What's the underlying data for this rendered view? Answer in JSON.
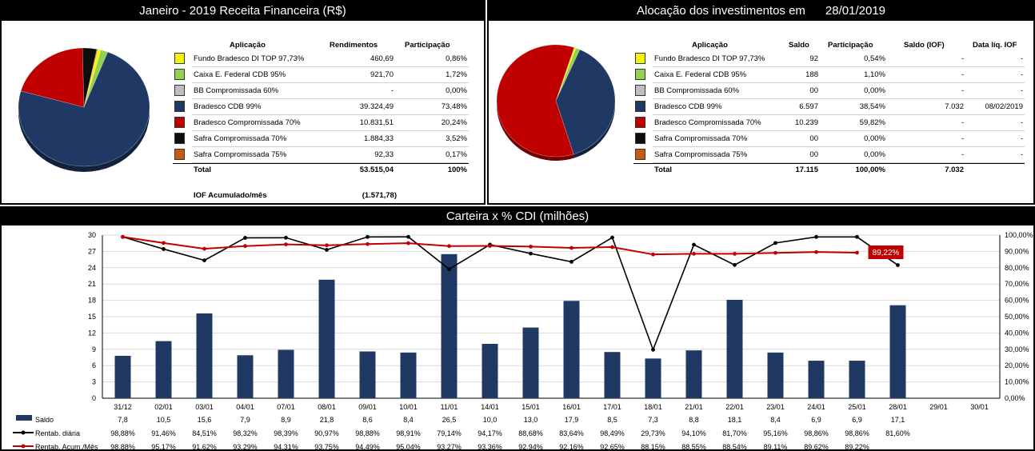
{
  "panel1": {
    "title": "Janeiro - 2019 Receita Financeira (R$)",
    "headers": {
      "app": "Aplicação",
      "rend": "Rendimentos",
      "part": "Participação"
    },
    "rows": [
      {
        "name": "Fundo Bradesco DI TOP 97,73%",
        "color": "#f5f500",
        "rend": "460,69",
        "part": "0,86%"
      },
      {
        "name": "Caixa E. Federal CDB 95%",
        "color": "#92d050",
        "rend": "921,70",
        "part": "1,72%"
      },
      {
        "name": "BB Compromissada 60%",
        "color": "#bfbfbf",
        "rend": "-",
        "part": "0,00%"
      },
      {
        "name": "Bradesco CDB 99%",
        "color": "#1f3864",
        "rend": "39.324,49",
        "part": "73,48%"
      },
      {
        "name": "Bradesco Compromissada 70%",
        "color": "#c00000",
        "rend": "10.831,51",
        "part": "20,24%"
      },
      {
        "name": "Safra Compromissada 70%",
        "color": "#0d0d0d",
        "rend": "1.884,33",
        "part": "3,52%"
      },
      {
        "name": "Safra Compromissada 75%",
        "color": "#c55a11",
        "rend": "92,33",
        "part": "0,17%"
      }
    ],
    "total": {
      "label": "Total",
      "rend": "53.515,04",
      "part": "100%"
    },
    "iof": {
      "label": "IOF Acumulado/mês",
      "value": "(1.571,78)"
    },
    "pie": [
      0.86,
      1.72,
      0.0,
      73.48,
      20.24,
      3.52,
      0.17
    ]
  },
  "panel2": {
    "title": "Alocação dos investimentos em      28/01/2019",
    "headers": {
      "app": "Aplicação",
      "saldo": "Saldo",
      "part": "Participação",
      "iof": "Saldo (IOF)",
      "data": "Data líq. IOF"
    },
    "rows": [
      {
        "name": "Fundo Bradesco DI TOP 97,73%",
        "color": "#f5f500",
        "saldo": "92",
        "part": "0,54%",
        "iof": "-",
        "data": "-"
      },
      {
        "name": "Caixa E. Federal CDB 95%",
        "color": "#92d050",
        "saldo": "188",
        "part": "1,10%",
        "iof": "-",
        "data": "-"
      },
      {
        "name": "BB Compromissada 60%",
        "color": "#bfbfbf",
        "saldo": "00",
        "part": "0,00%",
        "iof": "-",
        "data": "-"
      },
      {
        "name": "Bradesco CDB 99%",
        "color": "#1f3864",
        "saldo": "6.597",
        "part": "38,54%",
        "iof": "7.032",
        "data": "08/02/2019"
      },
      {
        "name": "Bradesco Compromissada 70%",
        "color": "#c00000",
        "saldo": "10.239",
        "part": "59,82%",
        "iof": "-",
        "data": "-"
      },
      {
        "name": "Safra Compromissada 70%",
        "color": "#0d0d0d",
        "saldo": "00",
        "part": "0,00%",
        "iof": "-",
        "data": "-"
      },
      {
        "name": "Safra Compromissada 75%",
        "color": "#c55a11",
        "saldo": "00",
        "part": "0,00%",
        "iof": "-",
        "data": "-"
      }
    ],
    "total": {
      "label": "Total",
      "saldo": "17.115",
      "part": "100,00%",
      "iof": "7.032"
    },
    "pie": [
      0.54,
      1.1,
      0.0,
      38.54,
      59.82,
      0.0,
      0.0
    ]
  },
  "panel3": {
    "title": "Carteira x % CDI (milhões)",
    "legend": {
      "saldo": "Saldo",
      "diaria": "Rentab. diária",
      "acum": "Rentab. Acum./Mês"
    }
  },
  "chart_data": {
    "type": "bar",
    "categories": [
      "31/12",
      "02/01",
      "03/01",
      "04/01",
      "07/01",
      "08/01",
      "09/01",
      "10/01",
      "11/01",
      "14/01",
      "15/01",
      "16/01",
      "17/01",
      "18/01",
      "21/01",
      "22/01",
      "23/01",
      "24/01",
      "25/01",
      "28/01",
      "29/01",
      "30/01"
    ],
    "series": [
      {
        "name": "Saldo",
        "type": "bar",
        "axis": "left",
        "color": "#1f3864",
        "values": [
          7.8,
          10.5,
          15.6,
          7.9,
          8.9,
          21.8,
          8.6,
          8.4,
          26.5,
          10.0,
          13.0,
          17.9,
          8.5,
          7.3,
          8.8,
          18.1,
          8.4,
          6.9,
          6.9,
          17.1,
          null,
          null
        ],
        "labels": [
          "7,8",
          "10,5",
          "15,6",
          "7,9",
          "8,9",
          "21,8",
          "8,6",
          "8,4",
          "26,5",
          "10,0",
          "13,0",
          "17,9",
          "8,5",
          "7,3",
          "8,8",
          "18,1",
          "8,4",
          "6,9",
          "6,9",
          "17,1",
          "",
          ""
        ]
      },
      {
        "name": "Rentab. diária",
        "type": "line",
        "axis": "right",
        "color": "#000000",
        "values": [
          98.88,
          91.46,
          84.51,
          98.32,
          98.39,
          90.97,
          98.88,
          98.91,
          79.14,
          94.17,
          88.68,
          83.64,
          98.49,
          29.73,
          94.1,
          81.7,
          95.16,
          98.86,
          98.86,
          81.6,
          null,
          null
        ],
        "labels": [
          "98,88%",
          "91,46%",
          "84,51%",
          "98,32%",
          "98,39%",
          "90,97%",
          "98,88%",
          "98,91%",
          "79,14%",
          "94,17%",
          "88,68%",
          "83,64%",
          "98,49%",
          "29,73%",
          "94,10%",
          "81,70%",
          "95,16%",
          "98,86%",
          "98,86%",
          "81,60%",
          "",
          ""
        ]
      },
      {
        "name": "Rentab. Acum./Mês",
        "type": "line",
        "axis": "right",
        "color": "#c00000",
        "values": [
          98.88,
          95.17,
          91.62,
          93.29,
          94.31,
          93.75,
          94.49,
          95.04,
          93.27,
          93.36,
          92.94,
          92.16,
          92.65,
          88.15,
          88.55,
          88.54,
          89.11,
          89.62,
          89.22,
          null,
          null,
          null
        ],
        "labels": [
          "98,88%",
          "95,17%",
          "91,62%",
          "93,29%",
          "94,31%",
          "93,75%",
          "94,49%",
          "95,04%",
          "93,27%",
          "93,36%",
          "92,94%",
          "92,16%",
          "92,65%",
          "88,15%",
          "88,55%",
          "88,54%",
          "89,11%",
          "89,62%",
          "89,22%",
          "",
          "",
          ""
        ]
      }
    ],
    "y_left": {
      "range": [
        0,
        30
      ],
      "ticks": [
        "0",
        "3",
        "6",
        "9",
        "12",
        "15",
        "18",
        "21",
        "24",
        "27",
        "30"
      ]
    },
    "y_right": {
      "range": [
        0,
        100
      ],
      "ticks": [
        "0,00%",
        "10,00%",
        "20,00%",
        "30,00%",
        "40,00%",
        "50,00%",
        "60,00%",
        "70,00%",
        "80,00%",
        "90,00%",
        "100,00%"
      ]
    },
    "callout": "89,22%",
    "grid": true
  }
}
